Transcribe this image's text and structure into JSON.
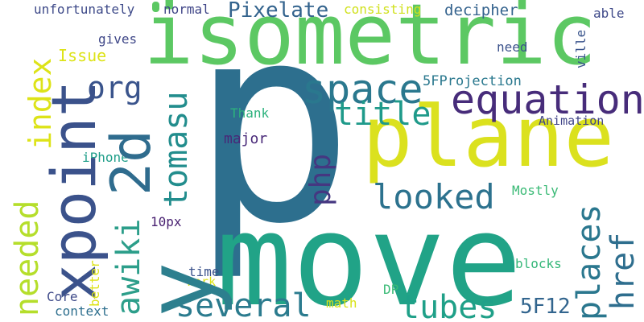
{
  "words": {
    "p": {
      "text": "p",
      "color": "#2d6f8e"
    },
    "move": {
      "text": "move",
      "color": "#21a387"
    },
    "isometric": {
      "text": "isometric",
      "color": "#5cc863"
    },
    "plane": {
      "text": "plane",
      "color": "#dbe11e"
    },
    "xpoint": {
      "text": "xpoint",
      "color": "#3b528b"
    },
    "y": {
      "text": "y",
      "color": "#2d7f8e"
    },
    "twod": {
      "text": "2d",
      "color": "#2f6c8e"
    },
    "awiki": {
      "text": "awiki",
      "color": "#2c9e8a"
    },
    "tomasu": {
      "text": "tomasu",
      "color": "#228d8d"
    },
    "index": {
      "text": "index",
      "color": "#dde318"
    },
    "needed": {
      "text": "needed",
      "color": "#b5de2b"
    },
    "equation": {
      "text": "equation",
      "color": "#472c7a"
    },
    "space": {
      "text": "space",
      "color": "#2a788e"
    },
    "title": {
      "text": "title",
      "color": "#1f9a8a"
    },
    "looked": {
      "text": "looked",
      "color": "#2c728e"
    },
    "several": {
      "text": "several",
      "color": "#2b7b8e"
    },
    "tubes": {
      "text": "tubes",
      "color": "#1fa088"
    },
    "org": {
      "text": "org",
      "color": "#3a548c"
    },
    "php": {
      "text": "php",
      "color": "#453781"
    },
    "places": {
      "text": "places",
      "color": "#2a778e"
    },
    "href": {
      "text": "href",
      "color": "#2e6e8e"
    },
    "Pixelate": {
      "text": "Pixelate",
      "color": "#33638d"
    },
    "5F12": {
      "text": "5F12",
      "color": "#32658e"
    },
    "unfortunately": {
      "text": "unfortunately",
      "color": "#3e4a89"
    },
    "normal": {
      "text": "normal",
      "color": "#404688"
    },
    "consisting": {
      "text": "consisting",
      "color": "#d0e11c"
    },
    "decipher": {
      "text": "decipher",
      "color": "#33628d"
    },
    "able": {
      "text": "able",
      "color": "#3e4989"
    },
    "gives": {
      "text": "gives",
      "color": "#3f4788"
    },
    "Issue": {
      "text": "Issue",
      "color": "#dde318"
    },
    "need": {
      "text": "need",
      "color": "#3b528b"
    },
    "ville": {
      "text": "ville",
      "color": "#3a548c"
    },
    "5FProjection": {
      "text": "5FProjection",
      "color": "#2a788e"
    },
    "Thank": {
      "text": "Thank",
      "color": "#2db27d"
    },
    "major": {
      "text": "major",
      "color": "#482878"
    },
    "Animation": {
      "text": "Animation",
      "color": "#404588"
    },
    "iPhone": {
      "text": "iPhone",
      "color": "#1f9e89"
    },
    "Mostly": {
      "text": "Mostly",
      "color": "#3aba76"
    },
    "10px": {
      "text": "10px",
      "color": "#482071"
    },
    "time": {
      "text": "time",
      "color": "#3b528b"
    },
    "work": {
      "text": "work",
      "color": "#dde318"
    },
    "better": {
      "text": "better",
      "color": "#dde318"
    },
    "blocks": {
      "text": "blocks",
      "color": "#35b779"
    },
    "Core": {
      "text": "Core",
      "color": "#3e4a89"
    },
    "context": {
      "text": "context",
      "color": "#2e6f8e"
    },
    "math": {
      "text": "math",
      "color": "#d8e219"
    },
    "DP": {
      "text": "DP",
      "color": "#3aba76"
    }
  }
}
